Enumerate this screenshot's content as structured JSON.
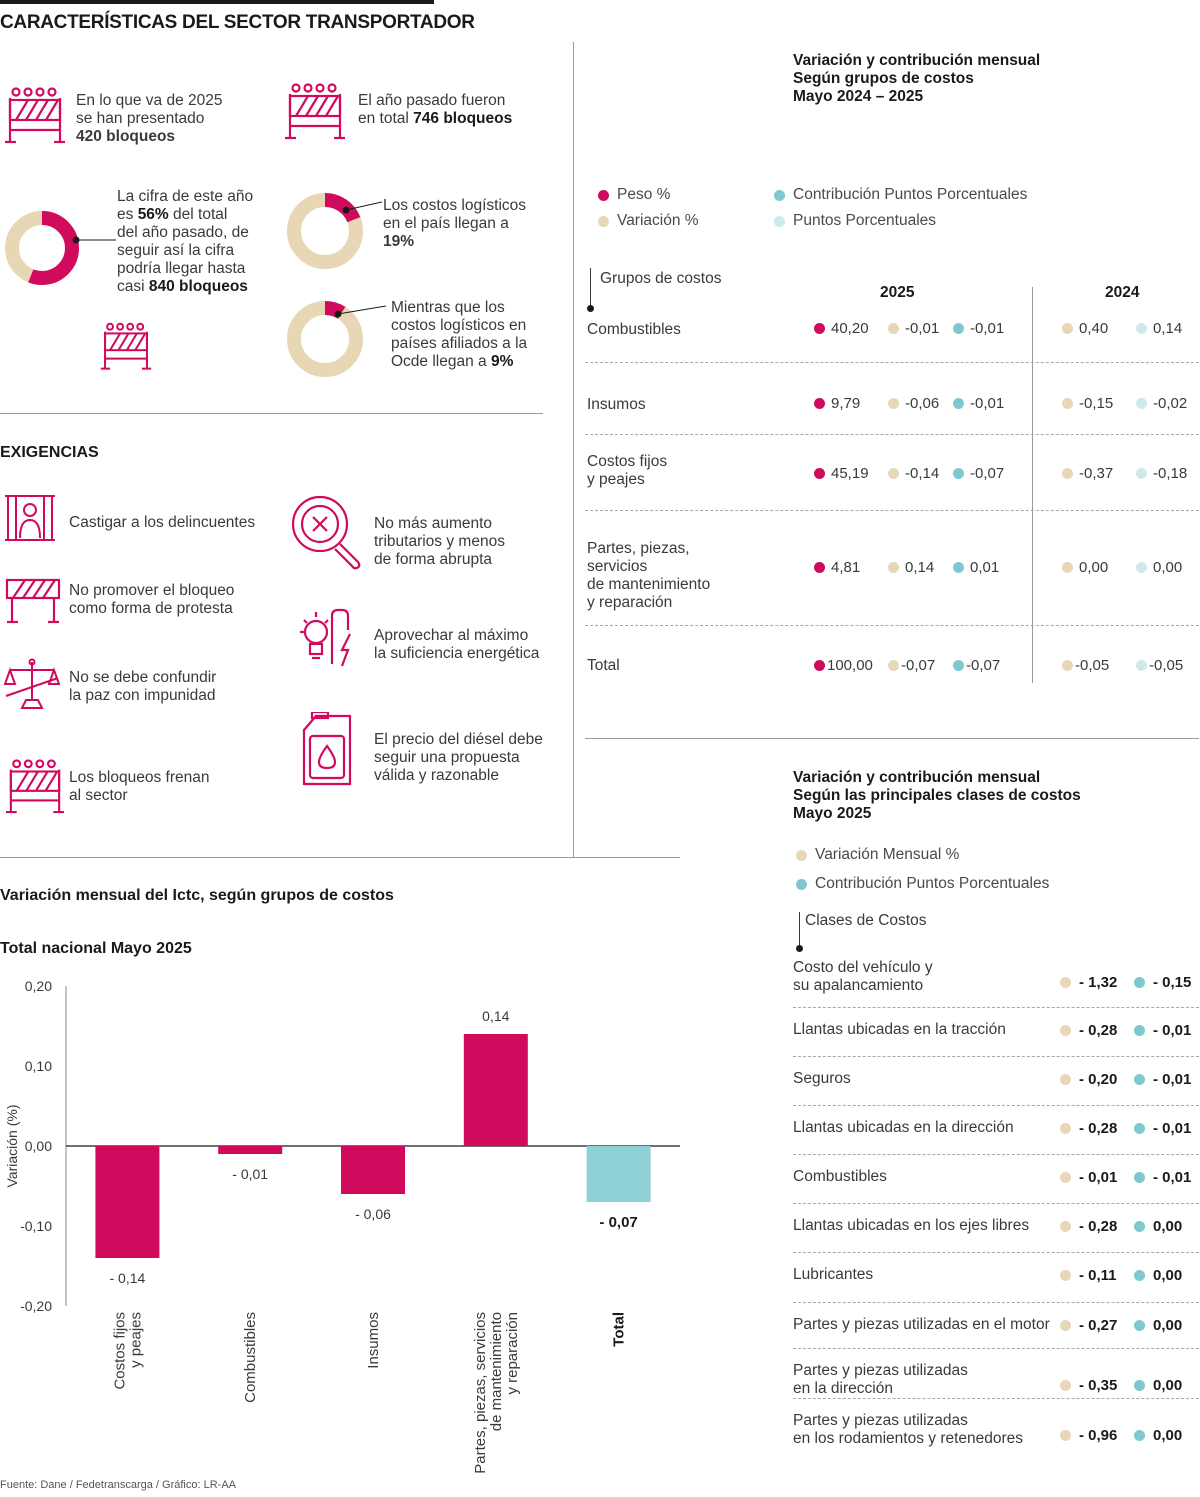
{
  "header": {
    "title": "CARACTERÍSTICAS DEL SECTOR TRANSPORTADOR"
  },
  "stats": {
    "s1_line1": "En lo que va de 2025",
    "s1_line2": "se han presentado",
    "s1_bold": "420 bloqueos",
    "s2_line1": "El año pasado fueron",
    "s2_pre": "en total ",
    "s2_bold": "746 bloqueos",
    "s3_l1": "La cifra de este año",
    "s3_l2_pre": "es ",
    "s3_l2_bold": "56%",
    "s3_l2_post": " del total",
    "s3_l3": "del año pasado, de",
    "s3_l4": "seguir así la cifra",
    "s3_l5": "podría llegar hasta",
    "s3_l6_pre": "casi ",
    "s3_l6_bold": "840 bloqueos",
    "s3_fraction": 0.56,
    "s4_l1": "Los costos logísticos",
    "s4_l2": "en el país llegan a",
    "s4_bold": "19%",
    "s4_fraction": 0.19,
    "s5_l1": "Mientras que los",
    "s5_l2": "costos logísticos en",
    "s5_l3": "países afiliados a la",
    "s5_l4_pre": "Ocde llegan a ",
    "s5_l4_bold": "9%",
    "s5_fraction": 0.09
  },
  "exigencias": {
    "title": "EXIGENCIAS",
    "e1": "Castigar a los delincuentes",
    "e2_l1": "No promover el bloqueo",
    "e2_l2": "como forma de protesta",
    "e3_l1": "No se debe confundir",
    "e3_l2": "la paz con impunidad",
    "e4_l1": "Los bloqueos frenan",
    "e4_l2": "al sector",
    "e5_l1": "No más aumento",
    "e5_l2": "tributarios y menos",
    "e5_l3": "de forma abrupta",
    "e6_l1": "Aprovechar al máximo",
    "e6_l2": "la suficiencia energética",
    "e7_l1": "El precio del diésel debe",
    "e7_l2": "seguir una propuesta",
    "e7_l3": "válida y razonable"
  },
  "table1": {
    "title_l1": "Variación y contribución mensual",
    "title_l2": "Según grupos de costos",
    "title_l3": "Mayo 2024 – 2025",
    "legend": {
      "peso": "Peso %",
      "variacion": "Variación %",
      "contribucion": "Contribución Puntos Porcentuales",
      "puntos": "Puntos Porcentuales"
    },
    "col_header": "Grupos de costos",
    "year_2025": "2025",
    "year_2024": "2024",
    "rows": [
      {
        "l1": "Combustibles",
        "l2": "",
        "l3": "",
        "l4": "",
        "peso": "40,20",
        "var": "-0,01",
        "cont": "-0,01",
        "v24": "0,40",
        "p24": "0,14"
      },
      {
        "l1": "Insumos",
        "l2": "",
        "l3": "",
        "l4": "",
        "peso": "9,79",
        "var": "-0,06",
        "cont": "-0,01",
        "v24": "-0,15",
        "p24": "-0,02"
      },
      {
        "l1": "Costos fijos",
        "l2": "y peajes",
        "l3": "",
        "l4": "",
        "peso": "45,19",
        "var": "-0,14",
        "cont": "-0,07",
        "v24": "-0,37",
        "p24": "-0,18"
      },
      {
        "l1": "Partes, piezas,",
        "l2": "servicios",
        "l3": "de mantenimiento",
        "l4": "y reparación",
        "peso": "4,81",
        "var": "0,14",
        "cont": "0,01",
        "v24": "0,00",
        "p24": "0,00"
      },
      {
        "l1": "Total",
        "l2": "",
        "l3": "",
        "l4": "",
        "peso": "100,00",
        "var": "-0,07",
        "cont": "-0,07",
        "v24": "-0,05",
        "p24": "-0,05"
      }
    ]
  },
  "table2": {
    "title_l1": "Variación y contribución mensual",
    "title_l2": "Según las principales clases de costos",
    "title_l3": "Mayo 2025",
    "legend": {
      "variacion": "Variación Mensual %",
      "contribucion": "Contribución Puntos Porcentuales"
    },
    "col_header": "Clases de Costos",
    "rows": [
      {
        "l1": "Costo del vehículo y",
        "l2": "su apalancamiento",
        "var": "- 1,32",
        "cont": "- 0,15"
      },
      {
        "l1": "Llantas ubicadas en la tracción",
        "l2": "",
        "var": "- 0,28",
        "cont": "- 0,01"
      },
      {
        "l1": "Seguros",
        "l2": "",
        "var": "- 0,20",
        "cont": "- 0,01"
      },
      {
        "l1": "Llantas ubicadas en la dirección",
        "l2": "",
        "var": "- 0,28",
        "cont": "- 0,01"
      },
      {
        "l1": "Combustibles",
        "l2": "",
        "var": "- 0,01",
        "cont": "- 0,01"
      },
      {
        "l1": "Llantas ubicadas en los ejes libres",
        "l2": "",
        "var": "- 0,28",
        "cont": "0,00"
      },
      {
        "l1": "Lubricantes",
        "l2": "",
        "var": "- 0,11",
        "cont": "0,00"
      },
      {
        "l1": "Partes y piezas utilizadas en el motor",
        "l2": "",
        "var": "- 0,27",
        "cont": "0,00"
      },
      {
        "l1": "Partes y piezas utilizadas",
        "l2": "en la dirección",
        "var": "- 0,35",
        "cont": "0,00"
      },
      {
        "l1": "Partes y piezas utilizadas",
        "l2": "en los rodamientos y retenedores",
        "var": "- 0,96",
        "cont": "0,00"
      }
    ]
  },
  "chart_data": {
    "type": "bar",
    "title": "Variación mensual del Ictc, según grupos de costos",
    "subtitle": "Total nacional Mayo 2025",
    "ylabel": "Variación (%)",
    "xlabel": "",
    "ylim": [
      -0.2,
      0.2
    ],
    "yticks": [
      0.2,
      0.1,
      0.0,
      -0.1,
      -0.2
    ],
    "ytick_labels": [
      "0,20",
      "0,10",
      "0,00",
      "-0,10",
      "-0,20"
    ],
    "categories": [
      "Costos fijos\ny peajes",
      "Combustibles",
      "Insumos",
      "Partes, piezas, servicios\nde mantenimiento\ny reparación",
      "Total"
    ],
    "values": [
      -0.14,
      -0.01,
      -0.06,
      0.14,
      -0.07
    ],
    "value_labels": [
      "- 0,14",
      "- 0,01",
      "- 0,06",
      "0,14",
      "- 0,07"
    ],
    "colors": [
      "#d10a5d",
      "#d10a5d",
      "#d10a5d",
      "#d10a5d",
      "#8fd0d4"
    ],
    "grid": false,
    "legend": "none"
  },
  "colors": {
    "magenta": "#d10a5d",
    "beige": "#e8d7b5",
    "teal": "#7fc9ce",
    "light_teal": "#cde9ec"
  },
  "footer": {
    "source": "Fuente: Dane / Fedetranscarga / Gráfico: LR-AA"
  }
}
